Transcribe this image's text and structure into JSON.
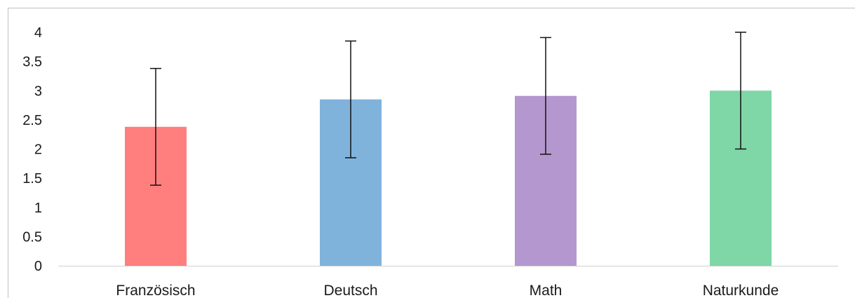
{
  "chart_data": {
    "type": "bar",
    "title": "",
    "xlabel": "",
    "ylabel": "",
    "categories": [
      "Französisch",
      "Deutsch",
      "Math",
      "Naturkunde"
    ],
    "values": [
      2.38,
      2.85,
      2.91,
      3.0
    ],
    "error": [
      1.0,
      1.0,
      1.0,
      1.0
    ],
    "colors": [
      "#ff7f7f",
      "#7fb3dc",
      "#b497ce",
      "#7fd6a6"
    ],
    "ylim": [
      0,
      4
    ],
    "yticks": [
      0,
      0.5,
      1,
      1.5,
      2,
      2.5,
      3,
      3.5,
      4
    ],
    "ytick_labels": [
      "0",
      "0.5",
      "1",
      "1.5",
      "2",
      "2.5",
      "3",
      "3.5",
      "4"
    ],
    "grid": false,
    "legend": "none"
  }
}
